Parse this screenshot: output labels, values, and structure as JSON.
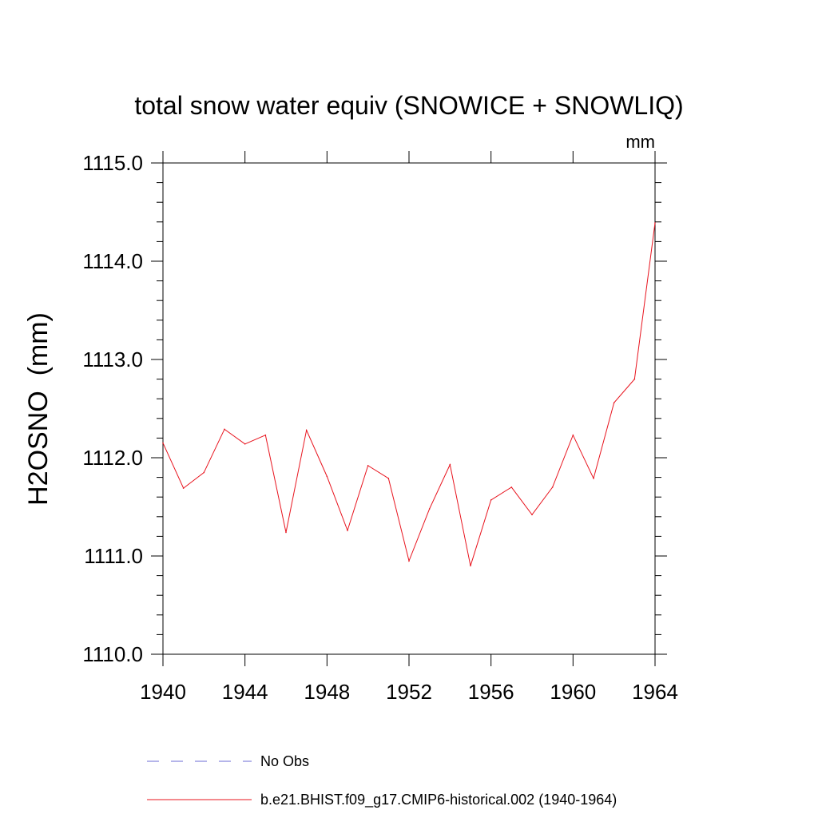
{
  "chart_data": {
    "type": "line",
    "title": "total snow water equiv (SNOWICE + SNOWLIQ)",
    "units": "mm",
    "ylabel": "H2OSNO  (mm)",
    "xlabel": "",
    "xlim": [
      1940,
      1964
    ],
    "ylim": [
      1110.0,
      1115.0
    ],
    "x_ticks": [
      1940,
      1944,
      1948,
      1952,
      1956,
      1960,
      1964
    ],
    "x_tick_labels": [
      "1940",
      "1944",
      "1948",
      "1952",
      "1956",
      "1960",
      "1964"
    ],
    "y_ticks": [
      1110.0,
      1111.0,
      1112.0,
      1113.0,
      1114.0,
      1115.0
    ],
    "y_tick_labels": [
      "1110.0",
      "1111.0",
      "1112.0",
      "1113.0",
      "1114.0",
      "1115.0"
    ],
    "series": [
      {
        "name": "b.e21.BHIST.f09_g17.CMIP6-historical.002 (1940-1964)",
        "color": "#e8141e",
        "style": "solid",
        "x": [
          1940,
          1941,
          1942,
          1943,
          1944,
          1945,
          1946,
          1947,
          1948,
          1949,
          1950,
          1951,
          1952,
          1953,
          1954,
          1955,
          1956,
          1957,
          1958,
          1959,
          1960,
          1961,
          1962,
          1963,
          1964
        ],
        "values": [
          1112.15,
          1111.69,
          1111.85,
          1112.29,
          1112.14,
          1112.23,
          1111.24,
          1112.28,
          1111.81,
          1111.26,
          1111.92,
          1111.79,
          1110.95,
          1111.48,
          1111.93,
          1110.9,
          1111.57,
          1111.7,
          1111.42,
          1111.7,
          1112.23,
          1111.79,
          1112.56,
          1112.8,
          1114.39
        ]
      }
    ],
    "legend": {
      "placement": "bottom-left",
      "entries": [
        {
          "label": "No Obs",
          "color": "#6b6bd6",
          "style": "dashed"
        },
        {
          "label": "b.e21.BHIST.f09_g17.CMIP6-historical.002 (1940-1964)",
          "color": "#e8141e",
          "style": "solid"
        }
      ]
    }
  }
}
